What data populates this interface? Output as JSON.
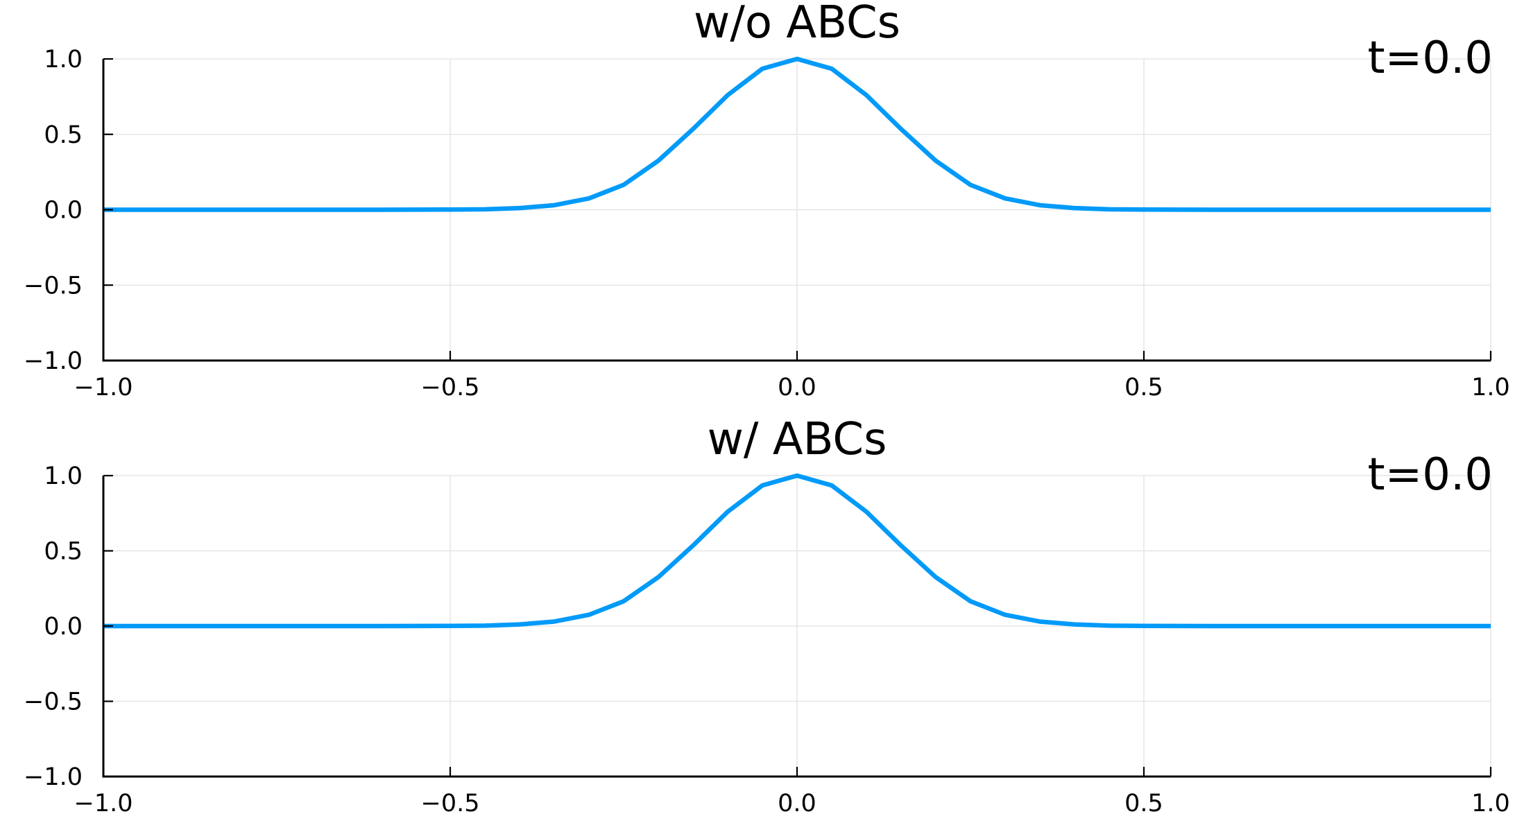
{
  "chart_data": [
    {
      "type": "line",
      "title": "w/o ABCs",
      "annotation": "t=0.0",
      "xlim": [
        -1.0,
        1.0
      ],
      "ylim": [
        -1.0,
        1.0
      ],
      "xticks": [
        "−1.0",
        "−0.5",
        "0.0",
        "0.5",
        "1.0"
      ],
      "yticks": [
        "1.0",
        "0.5",
        "0.0",
        "−0.5",
        "−1.0"
      ],
      "grid": true,
      "series": [
        {
          "color": "#009af9",
          "x": [
            -1.0,
            -0.9,
            -0.8,
            -0.7,
            -0.6,
            -0.5,
            -0.45,
            -0.4,
            -0.35,
            -0.3,
            -0.25,
            -0.2,
            -0.15,
            -0.1,
            -0.05,
            0.0,
            0.05,
            0.1,
            0.15,
            0.2,
            0.25,
            0.3,
            0.35,
            0.4,
            0.45,
            0.5,
            0.6,
            0.7,
            0.8,
            0.9,
            1.0
          ],
          "y": [
            0.0,
            0.0,
            0.0,
            0.0,
            0.0,
            0.001,
            0.003,
            0.011,
            0.03,
            0.075,
            0.165,
            0.325,
            0.535,
            0.76,
            0.935,
            1.0,
            0.935,
            0.76,
            0.535,
            0.325,
            0.165,
            0.075,
            0.03,
            0.011,
            0.003,
            0.001,
            0.0,
            0.0,
            0.0,
            0.0,
            0.0
          ]
        }
      ]
    },
    {
      "type": "line",
      "title": "w/ ABCs",
      "annotation": "t=0.0",
      "xlim": [
        -1.0,
        1.0
      ],
      "ylim": [
        -1.0,
        1.0
      ],
      "xticks": [
        "−1.0",
        "−0.5",
        "0.0",
        "0.5",
        "1.0"
      ],
      "yticks": [
        "1.0",
        "0.5",
        "0.0",
        "−0.5",
        "−1.0"
      ],
      "grid": true,
      "series": [
        {
          "color": "#009af9",
          "x": [
            -1.0,
            -0.9,
            -0.8,
            -0.7,
            -0.6,
            -0.5,
            -0.45,
            -0.4,
            -0.35,
            -0.3,
            -0.25,
            -0.2,
            -0.15,
            -0.1,
            -0.05,
            0.0,
            0.05,
            0.1,
            0.15,
            0.2,
            0.25,
            0.3,
            0.35,
            0.4,
            0.45,
            0.5,
            0.6,
            0.7,
            0.8,
            0.9,
            1.0
          ],
          "y": [
            0.0,
            0.0,
            0.0,
            0.0,
            0.0,
            0.001,
            0.003,
            0.011,
            0.03,
            0.075,
            0.165,
            0.325,
            0.535,
            0.76,
            0.935,
            1.0,
            0.935,
            0.76,
            0.535,
            0.325,
            0.165,
            0.075,
            0.03,
            0.011,
            0.003,
            0.001,
            0.0,
            0.0,
            0.0,
            0.0,
            0.0
          ]
        }
      ]
    }
  ]
}
